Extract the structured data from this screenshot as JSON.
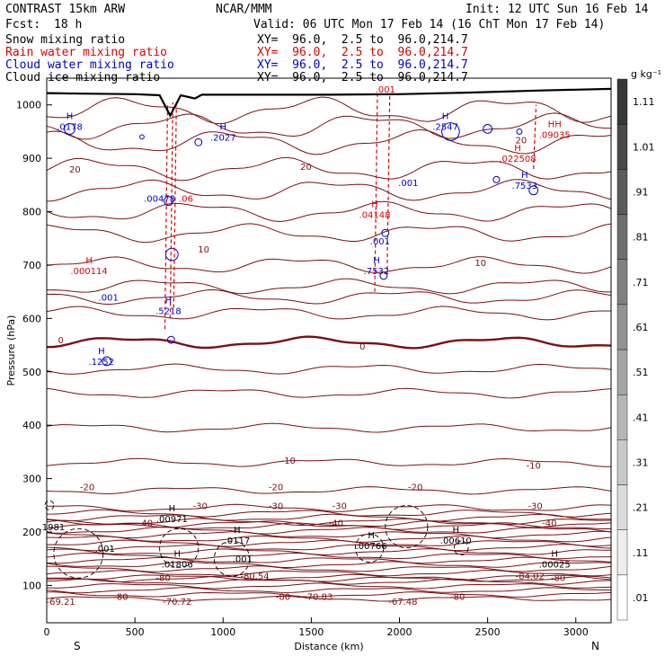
{
  "header": {
    "model": "CONTRAST 15km ARW",
    "org": "NCAR/MMM",
    "init": "Init: 12 UTC Sun 16 Feb 14",
    "fcst_label": "Fcst:",
    "fcst_value": "18 h",
    "valid": "Valid: 06 UTC Mon 17 Feb 14 (16 ChT Mon 17 Feb 14)",
    "xy": "XY=  96.0,  2.5 to  96.0,214.7"
  },
  "fields": [
    {
      "name": "Snow mixing ratio",
      "color": "#000000"
    },
    {
      "name": "Rain water mixing ratio",
      "color": "#dd0000"
    },
    {
      "name": "Cloud water mixing ratio",
      "color": "#0000cc"
    },
    {
      "name": "Cloud ice mixing ratio",
      "color": "#000000"
    }
  ],
  "chart_data": {
    "type": "cross-section",
    "xlabel": "Distance (km)",
    "ylabel": "Pressure (hPa)",
    "xlim": [
      0,
      3200
    ],
    "ylim": [
      1050,
      30
    ],
    "x_ticks": [
      0,
      500,
      1000,
      1500,
      2000,
      2500,
      3000
    ],
    "y_ticks": [
      100,
      200,
      300,
      400,
      500,
      600,
      700,
      800,
      900,
      1000
    ],
    "x_end_labels": {
      "left": "S",
      "right": "N"
    },
    "colorbar": {
      "unit": "g kg⁻¹",
      "ticks": [
        ".01",
        ".11",
        ".21",
        ".31",
        ".41",
        ".51",
        ".61",
        ".71",
        ".81",
        ".91",
        "1.01",
        "1.11"
      ]
    },
    "temperature_contours": [
      {
        "value": -80,
        "p": 112
      },
      {
        "value": -40,
        "p": 215
      },
      {
        "value": -30,
        "p": 245
      },
      {
        "value": -20,
        "p": 278
      },
      {
        "value": -10,
        "p": 330
      },
      {
        "value": 0,
        "p": 555
      },
      {
        "value": 10,
        "p": 700
      },
      {
        "value": 20,
        "p": 880
      }
    ],
    "temperature_labels": [
      {
        "text": "-69.21",
        "x": 80,
        "p": 70
      },
      {
        "text": "-70.72",
        "x": 740,
        "p": 70
      },
      {
        "text": "-70.83",
        "x": 1540,
        "p": 80
      },
      {
        "text": "-67.48",
        "x": 2020,
        "p": 70
      },
      {
        "text": "-80.54",
        "x": 1180,
        "p": 118
      },
      {
        "text": "-84.02",
        "x": 2740,
        "p": 118
      },
      {
        "text": "-80",
        "x": 420,
        "p": 80
      },
      {
        "text": "-80",
        "x": 660,
        "p": 115
      },
      {
        "text": "-80",
        "x": 1340,
        "p": 80
      },
      {
        "text": "-80",
        "x": 2330,
        "p": 80
      },
      {
        "text": "-80",
        "x": 2900,
        "p": 115
      },
      {
        "text": "-40",
        "x": 560,
        "p": 218
      },
      {
        "text": "-40",
        "x": 1640,
        "p": 218
      },
      {
        "text": "-40",
        "x": 2850,
        "p": 218
      },
      {
        "text": "-30",
        "x": 870,
        "p": 250
      },
      {
        "text": "-30",
        "x": 1300,
        "p": 250
      },
      {
        "text": "-30",
        "x": 1660,
        "p": 250
      },
      {
        "text": "-30",
        "x": 2770,
        "p": 250
      },
      {
        "text": "-20",
        "x": 230,
        "p": 285
      },
      {
        "text": "-20",
        "x": 1300,
        "p": 285
      },
      {
        "text": "-20",
        "x": 2090,
        "p": 285
      },
      {
        "text": "-10",
        "x": 1370,
        "p": 335
      },
      {
        "text": "-10",
        "x": 2760,
        "p": 325
      },
      {
        "text": "0",
        "x": 80,
        "p": 560
      },
      {
        "text": "0",
        "x": 1790,
        "p": 548
      },
      {
        "text": "10",
        "x": 890,
        "p": 730
      },
      {
        "text": "10",
        "x": 2460,
        "p": 705
      },
      {
        "text": "20",
        "x": 160,
        "p": 880
      },
      {
        "text": "20",
        "x": 1470,
        "p": 885
      },
      {
        "text": "20",
        "x": 2690,
        "p": 935
      }
    ],
    "extrema_labels": [
      {
        "text": ".01806",
        "x": 740,
        "p": 140,
        "color": "#000000",
        "h": "H"
      },
      {
        "text": ".001",
        "x": 330,
        "p": 170,
        "color": "#000000",
        "h": ""
      },
      {
        "text": ".001",
        "x": 1110,
        "p": 150,
        "color": "#000000",
        "h": ""
      },
      {
        "text": ".0117",
        "x": 1080,
        "p": 185,
        "color": "#000000",
        "h": "H"
      },
      {
        "text": ".00971",
        "x": 710,
        "p": 225,
        "color": "#000000",
        "h": "H"
      },
      {
        "text": ".00766",
        "x": 1840,
        "p": 175,
        "color": "#000000",
        "h": "H"
      },
      {
        "text": ".00610",
        "x": 2320,
        "p": 185,
        "color": "#000000",
        "h": "H"
      },
      {
        "text": ".00025",
        "x": 2880,
        "p": 140,
        "color": "#000000",
        "h": "H"
      },
      {
        "text": ".1981",
        "x": 30,
        "p": 210,
        "color": "#000000",
        "h": ""
      },
      {
        "text": ".1252",
        "x": 310,
        "p": 520,
        "color": "#0000cc",
        "h": "H"
      },
      {
        "text": ".001",
        "x": 350,
        "p": 640,
        "color": "#0000cc",
        "h": ""
      },
      {
        "text": ".5218",
        "x": 690,
        "p": 615,
        "color": "#0000cc",
        "h": "H"
      },
      {
        "text": ".000114",
        "x": 240,
        "p": 690,
        "color": "#dd0000",
        "h": "H"
      },
      {
        "text": ".00478",
        "x": 640,
        "p": 825,
        "color": "#0000cc",
        "h": ""
      },
      {
        "text": ".06",
        "x": 790,
        "p": 825,
        "color": "#dd0000",
        "h": ""
      },
      {
        "text": ".7532",
        "x": 1870,
        "p": 690,
        "color": "#0000cc",
        "h": "H"
      },
      {
        "text": ".001",
        "x": 1890,
        "p": 745,
        "color": "#0000cc",
        "h": ""
      },
      {
        "text": ".04148",
        "x": 1860,
        "p": 795,
        "color": "#dd0000",
        "h": "H"
      },
      {
        "text": ".001",
        "x": 2050,
        "p": 855,
        "color": "#0000cc",
        "h": ""
      },
      {
        "text": ".7533",
        "x": 2710,
        "p": 850,
        "color": "#0000cc",
        "h": "H"
      },
      {
        "text": ".022508",
        "x": 2670,
        "p": 900,
        "color": "#dd0000",
        "h": "H"
      },
      {
        "text": ".2027",
        "x": 1000,
        "p": 940,
        "color": "#0000cc",
        "h": "H"
      },
      {
        "text": ".0178",
        "x": 130,
        "p": 960,
        "color": "#0000cc",
        "h": "H"
      },
      {
        "text": ".2547",
        "x": 2260,
        "p": 960,
        "color": "#0000cc",
        "h": "H"
      },
      {
        "text": ".09035",
        "x": 2880,
        "p": 945,
        "color": "#dd0000",
        "h": "HH"
      },
      {
        "text": ".001",
        "x": 1920,
        "p": 1030,
        "color": "#dd0000",
        "h": ""
      }
    ],
    "terrain": [
      {
        "x": 0,
        "p": 1022
      },
      {
        "x": 200,
        "p": 1021
      },
      {
        "x": 500,
        "p": 1020
      },
      {
        "x": 640,
        "p": 1018
      },
      {
        "x": 700,
        "p": 980
      },
      {
        "x": 760,
        "p": 1018
      },
      {
        "x": 840,
        "p": 1012
      },
      {
        "x": 880,
        "p": 1019
      },
      {
        "x": 1200,
        "p": 1019
      },
      {
        "x": 1600,
        "p": 1019
      },
      {
        "x": 2000,
        "p": 1020
      },
      {
        "x": 2400,
        "p": 1023
      },
      {
        "x": 2800,
        "p": 1027
      },
      {
        "x": 3200,
        "p": 1030
      }
    ]
  }
}
